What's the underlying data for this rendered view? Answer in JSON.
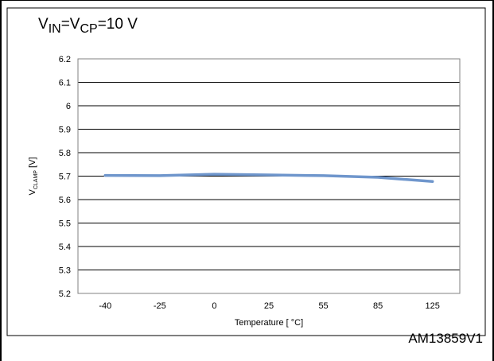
{
  "condition": {
    "parts": [
      {
        "text": "V",
        "sub": "IN"
      },
      {
        "text": "=V",
        "sub": "CP"
      },
      {
        "text": "=10 V",
        "sub": ""
      }
    ]
  },
  "figure_code": "AM13859V1",
  "chart_data": {
    "type": "line",
    "categories": [
      "-40",
      "-25",
      "0",
      "25",
      "55",
      "85",
      "125"
    ],
    "series": [
      {
        "values": [
          5.703,
          5.702,
          5.708,
          5.705,
          5.702,
          5.695,
          5.677
        ],
        "color": "#6f96cc"
      }
    ],
    "yticks": [
      "5.2",
      "5.3",
      "5.4",
      "5.5",
      "5.6",
      "5.7",
      "5.8",
      "5.9",
      "6",
      "6.1",
      "6.2"
    ],
    "ylim": [
      5.2,
      6.2
    ],
    "xlabel": "Temperature [ °C]",
    "ylabel_main": "V",
    "ylabel_sub": "CLAMP",
    "ylabel_unit": " [V]",
    "grid": true,
    "gridline_color": "#000000",
    "plot_border_color": "#808080"
  }
}
